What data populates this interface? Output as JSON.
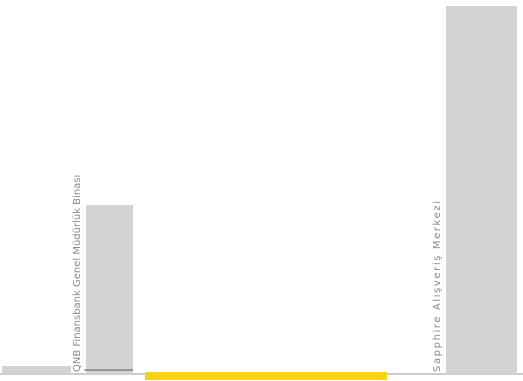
{
  "chart_data": {
    "type": "bar",
    "title": "",
    "xlabel": "",
    "ylabel": "",
    "categories": [
      "",
      "QNB Finansbank Genel Müdürlük Binası",
      "",
      "Sapphire Alışveriş Merkezi"
    ],
    "values": [
      8,
      170,
      6,
      370
    ],
    "highlight": {
      "category_index": 2,
      "color": "#f7d417"
    },
    "ylim": [
      0,
      372
    ],
    "grid": false,
    "legend": "none",
    "colors": {
      "bar": "#d3d3d3",
      "baseline": "#999999",
      "label": "#8a8a8a"
    }
  }
}
